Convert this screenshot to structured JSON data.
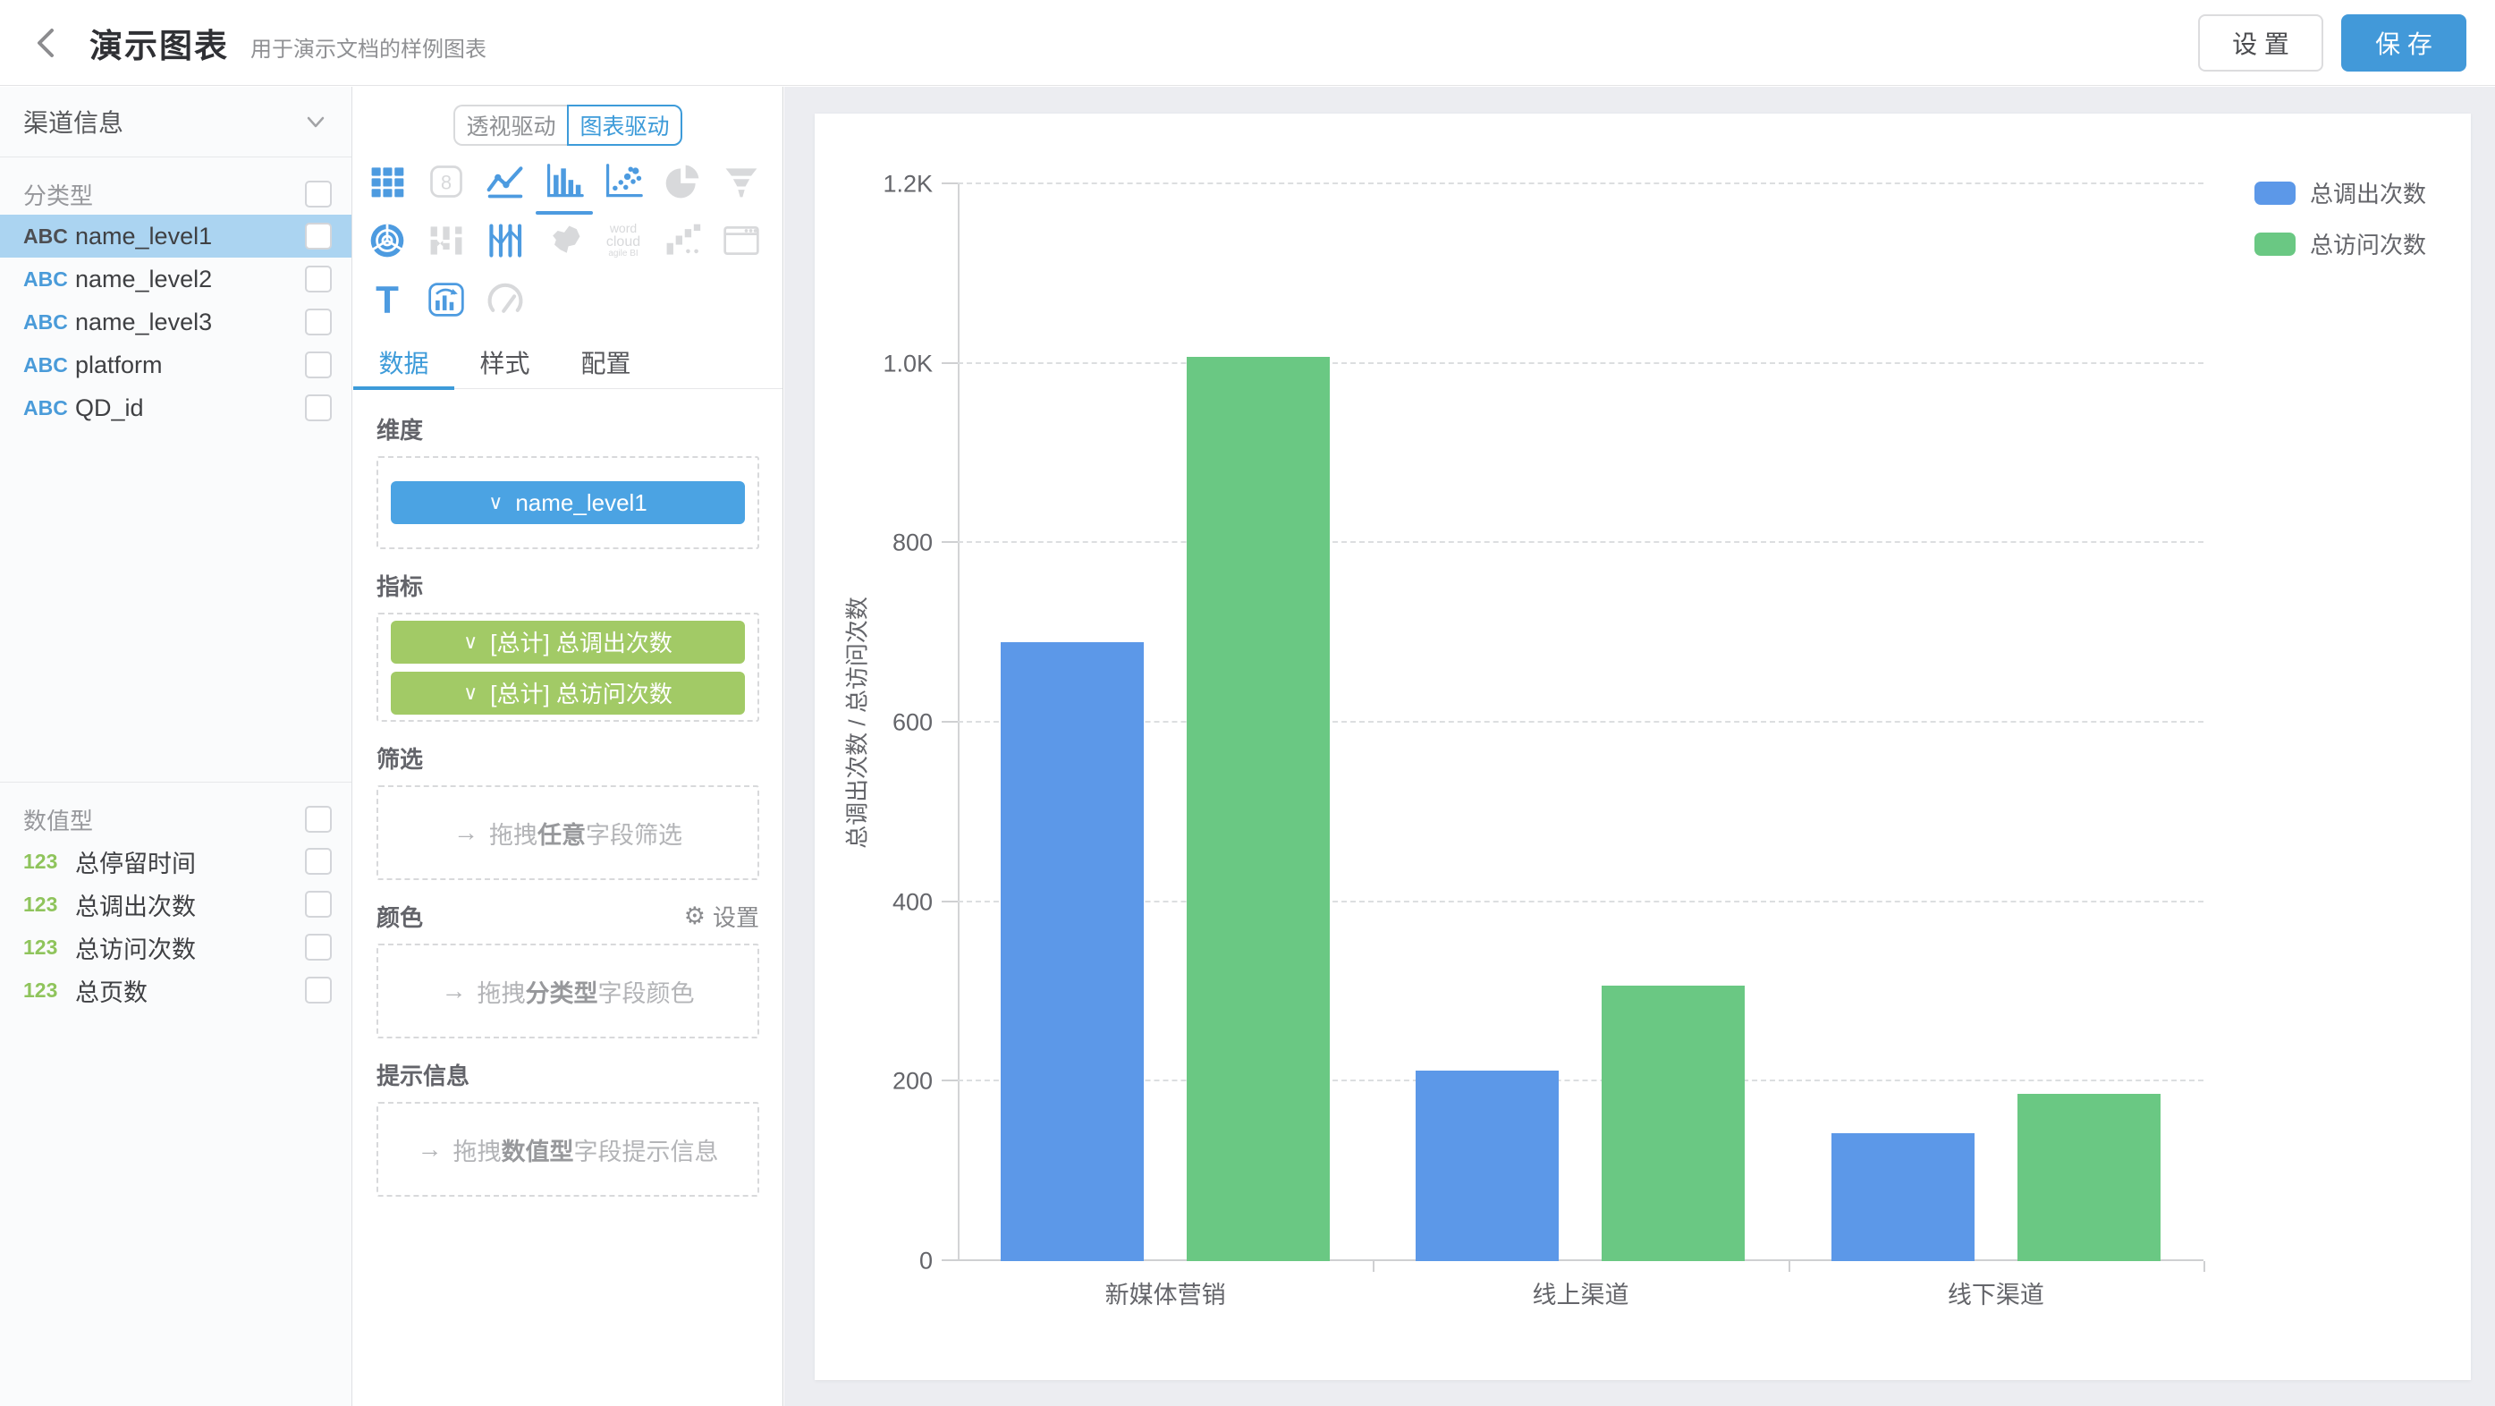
{
  "header": {
    "title": "演示图表",
    "subtitle": "用于演示文档的样例图表",
    "settings_label": "设 置",
    "save_label": "保 存"
  },
  "sidebar": {
    "source_selector": "渠道信息",
    "categorical": {
      "label": "分类型",
      "fields": [
        {
          "prefix": "ABC",
          "name": "name_level1",
          "selected": true
        },
        {
          "prefix": "ABC",
          "name": "name_level2",
          "selected": false
        },
        {
          "prefix": "ABC",
          "name": "name_level3",
          "selected": false
        },
        {
          "prefix": "ABC",
          "name": "platform",
          "selected": false
        },
        {
          "prefix": "ABC",
          "name": "QD_id",
          "selected": false
        }
      ]
    },
    "numeric": {
      "label": "数值型",
      "fields": [
        {
          "prefix": "123",
          "name": "总停留时间"
        },
        {
          "prefix": "123",
          "name": "总调出次数"
        },
        {
          "prefix": "123",
          "name": "总访问次数"
        },
        {
          "prefix": "123",
          "name": "总页数"
        }
      ]
    }
  },
  "panel": {
    "mode_toggle": {
      "options": [
        "透视驱动",
        "图表驱动"
      ],
      "selected": "图表驱动"
    },
    "chart_types": [
      {
        "icon": "table-chart",
        "state": "enabled"
      },
      {
        "icon": "scorecard",
        "state": "disabled"
      },
      {
        "icon": "line-chart",
        "state": "enabled"
      },
      {
        "icon": "bar-chart",
        "state": "selected"
      },
      {
        "icon": "scatter-chart",
        "state": "enabled"
      },
      {
        "icon": "pie-chart",
        "state": "disabled"
      },
      {
        "icon": "funnel-chart",
        "state": "disabled"
      },
      {
        "icon": "radar-chart",
        "state": "enabled"
      },
      {
        "icon": "sankey-chart",
        "state": "disabled"
      },
      {
        "icon": "parallel-chart",
        "state": "enabled"
      },
      {
        "icon": "map-chart",
        "state": "disabled"
      },
      {
        "icon": "wordcloud-chart",
        "state": "disabled"
      },
      {
        "icon": "waterfall-chart",
        "state": "disabled"
      },
      {
        "icon": "iframe-chart",
        "state": "disabled"
      },
      {
        "icon": "text-chart",
        "state": "enabled"
      },
      {
        "icon": "dual-axis-chart",
        "state": "enabled"
      },
      {
        "icon": "gauge-chart",
        "state": "disabled"
      }
    ],
    "wordcloud_icon_text": [
      "word",
      "cloud",
      "agile BI"
    ],
    "tabs": [
      {
        "label": "数据",
        "selected": true
      },
      {
        "label": "样式",
        "selected": false
      },
      {
        "label": "配置",
        "selected": false
      }
    ],
    "sections": {
      "dimension": {
        "label": "维度",
        "chips": [
          {
            "text": "name_level1",
            "color": "#4ba3e3"
          }
        ]
      },
      "metric": {
        "label": "指标",
        "chips": [
          {
            "text": "[总计] 总调出次数",
            "color": "#a2ca66"
          },
          {
            "text": "[总计] 总访问次数",
            "color": "#a2ca66"
          }
        ]
      },
      "filter": {
        "label": "筛选",
        "parts": [
          "拖拽",
          "任意",
          "字段筛选"
        ]
      },
      "color": {
        "label": "颜色",
        "action": "设置",
        "parts": [
          "拖拽",
          "分类型",
          "字段颜色"
        ]
      },
      "tip": {
        "label": "提示信息",
        "parts": [
          "拖拽",
          "数值型",
          "字段提示信息"
        ]
      }
    }
  },
  "chart_data": {
    "type": "bar",
    "categories": [
      "新媒体营销",
      "线上渠道",
      "线下渠道"
    ],
    "series": [
      {
        "name": "总调出次数",
        "color": "#5c98e8",
        "values": [
          690,
          212,
          143
        ]
      },
      {
        "name": "总访问次数",
        "color": "#6ac883",
        "values": [
          1008,
          307,
          186
        ]
      }
    ],
    "ylabel": "总调出次数 / 总访问次数",
    "xlabel": "",
    "ylim": [
      0,
      1200
    ],
    "yticks": [
      {
        "v": 0,
        "label": "0"
      },
      {
        "v": 200,
        "label": "200"
      },
      {
        "v": 400,
        "label": "400"
      },
      {
        "v": 600,
        "label": "600"
      },
      {
        "v": 800,
        "label": "800"
      },
      {
        "v": 1000,
        "label": "1.0K"
      },
      {
        "v": 1200,
        "label": "1.2K"
      }
    ],
    "grid": true,
    "legend_position": "top-right"
  }
}
